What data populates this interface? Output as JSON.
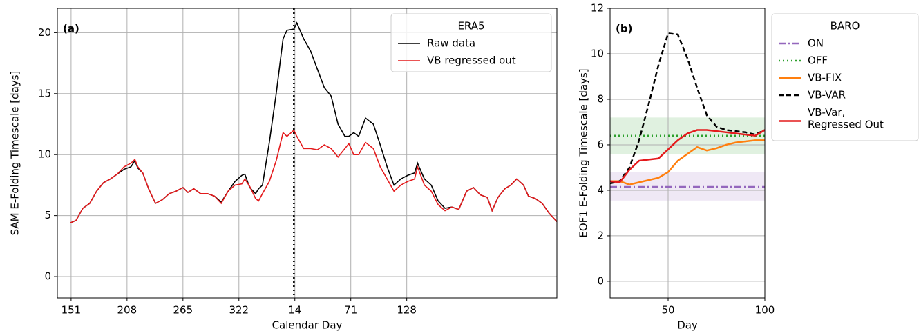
{
  "chart_data": [
    {
      "type": "line",
      "panel_label": "(a)",
      "xlabel": "Calendar Day",
      "ylabel": "SAM E-Folding Timescale [days]",
      "x": [
        150,
        156,
        163,
        170,
        177,
        184,
        191,
        198,
        205,
        212,
        216,
        219,
        224,
        230,
        237,
        244,
        251,
        258,
        265,
        270,
        276,
        283,
        290,
        297,
        304,
        311,
        318,
        325,
        328,
        333,
        339,
        342,
        346,
        353,
        360,
        367,
        371,
        378,
        381,
        388,
        395,
        402,
        409,
        416,
        423,
        430,
        434,
        439,
        444,
        451,
        459,
        466,
        473,
        480,
        487,
        494,
        501,
        504,
        511,
        518,
        525,
        532,
        539,
        546,
        554,
        561,
        568,
        575,
        580,
        586,
        593,
        599,
        605,
        612,
        617,
        624,
        631,
        638,
        646
      ],
      "xlim": [
        137,
        646
      ],
      "xticks": [
        151,
        208,
        265,
        322,
        {
          "value": 379,
          "label": "14"
        },
        {
          "value": 436,
          "label": "71"
        },
        {
          "value": 493,
          "label": "128"
        }
      ],
      "ylim": [
        -1.75,
        22
      ],
      "yticks": [
        0,
        5,
        10,
        15,
        20
      ],
      "grid": true,
      "legend_title": "ERA5",
      "legend_loc": "upper right",
      "vlines": [
        378
      ],
      "series": [
        {
          "name": "Raw data",
          "color": "#000000",
          "dash": "solid",
          "values": [
            4.4,
            4.6,
            5.6,
            6.0,
            7.0,
            7.7,
            8.0,
            8.4,
            8.8,
            9.0,
            9.5,
            8.9,
            8.5,
            7.2,
            6.0,
            6.3,
            6.8,
            7.0,
            7.3,
            6.9,
            7.2,
            6.8,
            6.8,
            6.6,
            6.1,
            7.0,
            7.8,
            8.3,
            8.4,
            7.3,
            6.8,
            7.2,
            7.5,
            11.0,
            15.0,
            19.5,
            20.2,
            20.3,
            20.8,
            19.5,
            18.5,
            17.0,
            15.5,
            14.8,
            12.5,
            11.5,
            11.5,
            11.8,
            11.5,
            13.0,
            12.5,
            10.8,
            9.0,
            7.5,
            8.0,
            8.3,
            8.5,
            9.3,
            8.0,
            7.5,
            6.2,
            5.6,
            5.7,
            5.5,
            7.0,
            7.3,
            6.7,
            6.5,
            5.4,
            6.5,
            7.2,
            7.5,
            8.0,
            7.5,
            6.6,
            6.4,
            6.0,
            5.2,
            4.5
          ]
        },
        {
          "name": "VB regressed out",
          "color": "#e41a1c",
          "dash": "solid",
          "values": [
            4.4,
            4.6,
            5.6,
            6.0,
            7.0,
            7.7,
            8.0,
            8.4,
            9.0,
            9.3,
            9.6,
            9.0,
            8.5,
            7.2,
            6.0,
            6.3,
            6.8,
            7.0,
            7.3,
            6.9,
            7.2,
            6.8,
            6.8,
            6.6,
            6.0,
            7.0,
            7.5,
            7.6,
            8.0,
            7.4,
            6.4,
            6.2,
            6.8,
            7.8,
            9.5,
            11.8,
            11.5,
            12.0,
            11.5,
            10.5,
            10.5,
            10.4,
            10.8,
            10.5,
            9.8,
            10.5,
            10.9,
            10.0,
            10.0,
            11.0,
            10.5,
            9.0,
            8.0,
            7.0,
            7.5,
            7.8,
            8.0,
            9.0,
            7.5,
            7.0,
            5.9,
            5.4,
            5.7,
            5.5,
            7.0,
            7.3,
            6.7,
            6.5,
            5.4,
            6.5,
            7.2,
            7.5,
            8.0,
            7.5,
            6.6,
            6.4,
            6.0,
            5.2,
            4.5
          ]
        }
      ]
    },
    {
      "type": "line",
      "panel_label": "(b)",
      "xlabel": "Day",
      "ylabel": "EOF1 E-Folding Timescale [days]",
      "x": [
        20,
        25,
        30,
        35,
        40,
        45,
        50,
        55,
        60,
        65,
        70,
        75,
        80,
        85,
        90,
        95,
        100
      ],
      "xlim": [
        20,
        100
      ],
      "xticks": [
        50,
        100
      ],
      "ylim": [
        -0.73,
        12
      ],
      "yticks": [
        0,
        2,
        4,
        6,
        8,
        10,
        12
      ],
      "grid": true,
      "legend_title": "BARO",
      "legend_loc": "outside right",
      "series": [
        {
          "name": "ON",
          "color": "#9467bd",
          "dash": "dashdot",
          "band": [
            3.55,
            4.8
          ],
          "values": [
            4.15,
            4.15,
            4.15,
            4.15,
            4.15,
            4.15,
            4.15,
            4.15,
            4.15,
            4.15,
            4.15,
            4.15,
            4.15,
            4.15,
            4.15,
            4.15,
            4.15
          ]
        },
        {
          "name": "OFF",
          "color": "#2ca02c",
          "dash": "dotted",
          "band": [
            5.6,
            7.2
          ],
          "values": [
            6.4,
            6.4,
            6.4,
            6.4,
            6.4,
            6.4,
            6.4,
            6.4,
            6.4,
            6.4,
            6.4,
            6.4,
            6.4,
            6.4,
            6.4,
            6.4,
            6.4
          ]
        },
        {
          "name": "VB-FIX",
          "color": "#ff7f0e",
          "dash": "solid",
          "values": [
            4.4,
            4.4,
            4.25,
            4.35,
            4.45,
            4.55,
            4.8,
            5.3,
            5.6,
            5.9,
            5.75,
            5.85,
            6.0,
            6.1,
            6.15,
            6.2,
            6.2
          ]
        },
        {
          "name": "VB-VAR",
          "color": "#000000",
          "dash": "dashed",
          "values": [
            4.3,
            4.4,
            5.0,
            6.2,
            7.8,
            9.5,
            10.9,
            10.85,
            9.8,
            8.5,
            7.3,
            6.8,
            6.65,
            6.6,
            6.55,
            6.45,
            6.65
          ]
        },
        {
          "name": "VB-Var,\nRegressed Out",
          "color": "#e41a1c",
          "dash": "solid",
          "values": [
            4.4,
            4.35,
            4.9,
            5.3,
            5.35,
            5.4,
            5.8,
            6.2,
            6.5,
            6.65,
            6.65,
            6.6,
            6.55,
            6.5,
            6.45,
            6.4,
            6.65
          ]
        }
      ]
    }
  ]
}
